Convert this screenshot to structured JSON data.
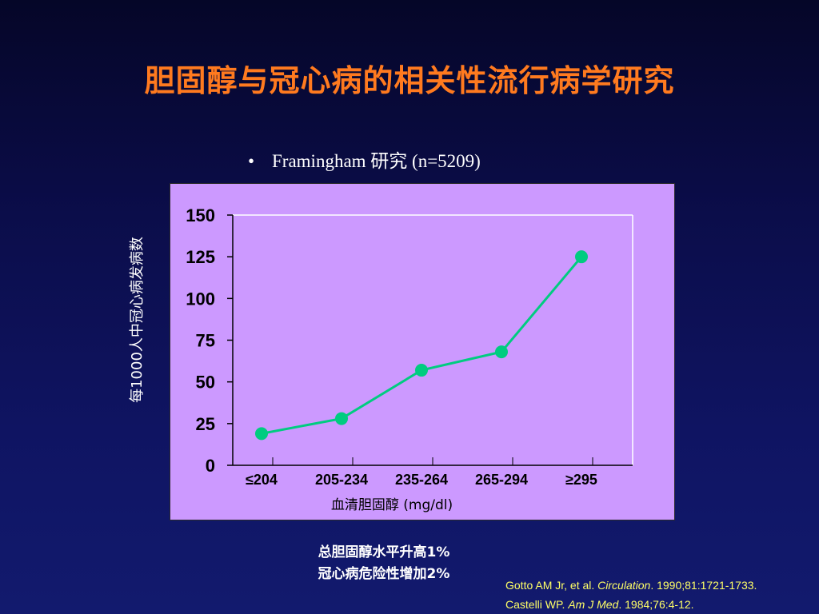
{
  "slide": {
    "title": "胆固醇与冠心病的相关性流行病学研究",
    "bullet": {
      "symbol": "•",
      "text": "Framingham 研究 (n=5209)"
    },
    "note_lines": [
      "总胆固醇水平升高1%",
      "冠心病危险性增加2%"
    ],
    "citations": [
      {
        "pre": "Gotto AM Jr, et al. ",
        "journal": "Circulation",
        "post": ". 1990;81:1721-1733."
      },
      {
        "pre": "Castelli WP. ",
        "journal": "Am J Med",
        "post": ". 1984;76:4-12."
      }
    ]
  },
  "colors": {
    "background": "#0b0d4a",
    "title": "#ff7a1f",
    "panel": "#cc99ff",
    "line": "#00cc80",
    "citation": "#ffff66"
  },
  "chart_data": {
    "type": "line",
    "categories": [
      "≤204",
      "205-234",
      "235-264",
      "265-294",
      "≥295"
    ],
    "series": [
      {
        "values": [
          19,
          28,
          57,
          68,
          125
        ]
      }
    ],
    "ylabel": "每1000人中冠心病发病数",
    "xlabel": "血清胆固醇 (mg/dl)",
    "ylim": [
      0,
      150
    ],
    "yticks": [
      0,
      25,
      50,
      75,
      100,
      125,
      150
    ],
    "grid": false,
    "legend": "none"
  }
}
